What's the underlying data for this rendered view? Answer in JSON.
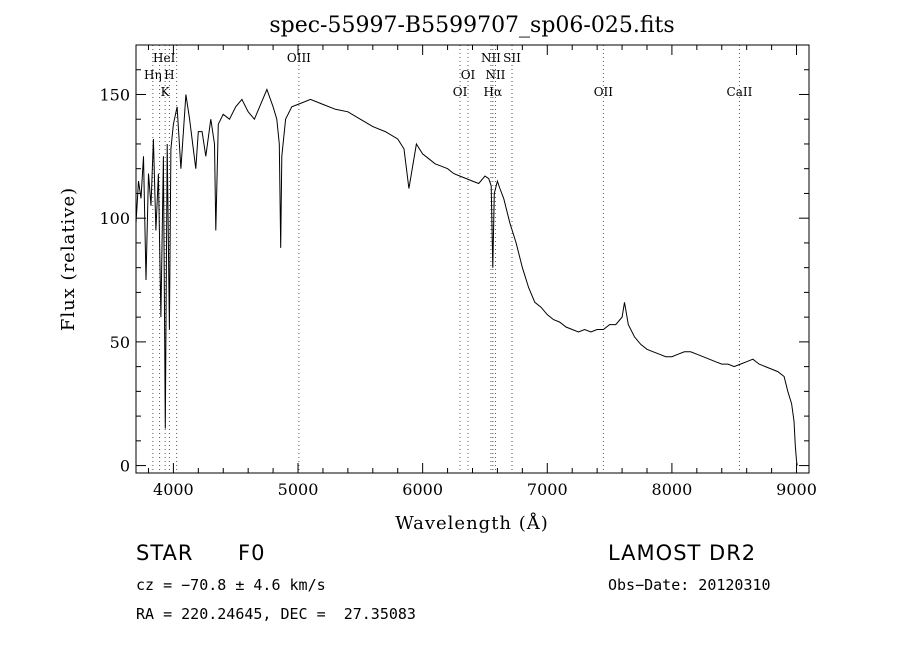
{
  "chart_data": {
    "type": "line",
    "title": "spec-55997-B5599707_sp06-025.fits",
    "xlabel": "Wavelength (Å)",
    "ylabel": "Flux (relative)",
    "xlim": [
      3700,
      9100
    ],
    "ylim": [
      -3,
      170
    ],
    "xticks": [
      4000,
      5000,
      6000,
      7000,
      8000,
      9000
    ],
    "yticks": [
      0,
      50,
      100,
      150
    ],
    "grid": false,
    "series": [
      {
        "x": [
          3700,
          3720,
          3740,
          3760,
          3780,
          3800,
          3820,
          3840,
          3860,
          3880,
          3900,
          3920,
          3935,
          3950,
          3968,
          3980,
          4000,
          4030,
          4060,
          4100,
          4130,
          4160,
          4180,
          4200,
          4230,
          4260,
          4300,
          4330,
          4340,
          4360,
          4400,
          4450,
          4500,
          4550,
          4600,
          4650,
          4700,
          4750,
          4800,
          4830,
          4850,
          4861,
          4870,
          4900,
          4950,
          5000,
          5100,
          5200,
          5300,
          5400,
          5500,
          5600,
          5700,
          5800,
          5850,
          5890,
          5950,
          6000,
          6050,
          6100,
          6150,
          6200,
          6250,
          6300,
          6350,
          6400,
          6450,
          6500,
          6530,
          6550,
          6563,
          6575,
          6600,
          6620,
          6650,
          6700,
          6750,
          6800,
          6850,
          6900,
          6950,
          7000,
          7050,
          7100,
          7150,
          7200,
          7250,
          7300,
          7350,
          7400,
          7450,
          7500,
          7550,
          7600,
          7620,
          7650,
          7700,
          7750,
          7800,
          7850,
          7900,
          7950,
          8000,
          8050,
          8100,
          8150,
          8200,
          8250,
          8300,
          8350,
          8400,
          8450,
          8500,
          8550,
          8600,
          8650,
          8700,
          8750,
          8800,
          8850,
          8900,
          8930,
          8960,
          8980,
          8990,
          9000,
          9005
        ],
        "y": [
          98,
          115,
          108,
          125,
          75,
          118,
          105,
          132,
          95,
          118,
          60,
          125,
          15,
          130,
          55,
          128,
          138,
          145,
          120,
          150,
          140,
          128,
          120,
          135,
          135,
          125,
          140,
          130,
          95,
          138,
          142,
          140,
          145,
          148,
          143,
          140,
          146,
          152,
          145,
          140,
          130,
          88,
          125,
          140,
          145,
          146,
          148,
          146,
          144,
          143,
          140,
          137,
          135,
          132,
          128,
          112,
          130,
          126,
          124,
          122,
          121,
          120,
          118,
          117,
          116,
          115,
          114,
          117,
          116,
          113,
          80,
          110,
          115,
          112,
          108,
          98,
          90,
          80,
          72,
          66,
          64,
          61,
          59,
          58,
          56,
          55,
          54,
          55,
          54,
          55,
          55,
          57,
          57,
          60,
          66,
          57,
          52,
          49,
          47,
          46,
          45,
          44,
          44,
          45,
          46,
          46,
          45,
          44,
          43,
          42,
          41,
          41,
          40,
          41,
          42,
          43,
          41,
          40,
          39,
          38,
          36,
          30,
          25,
          18,
          8,
          2,
          0
        ]
      }
    ],
    "lines": [
      {
        "x": 3835,
        "labels": [
          "Hη"
        ]
      },
      {
        "x": 3889,
        "labels": []
      },
      {
        "x": 3934,
        "labels": [
          "K"
        ]
      },
      {
        "x": 3968,
        "labels": [
          "H"
        ]
      },
      {
        "x": 4026,
        "labels": [
          "HeI"
        ]
      },
      {
        "x": 5007,
        "labels": [
          "OIII"
        ]
      },
      {
        "x": 6300,
        "labels": [
          "OI"
        ]
      },
      {
        "x": 6364,
        "labels": [
          "OI"
        ]
      },
      {
        "x": 6548,
        "labels": [
          "NII"
        ]
      },
      {
        "x": 6563,
        "labels": [
          "Hα"
        ]
      },
      {
        "x": 6584,
        "labels": [
          "NII"
        ]
      },
      {
        "x": 6717,
        "labels": [
          "SII"
        ]
      },
      {
        "x": 7450,
        "labels": [
          "OII"
        ]
      },
      {
        "x": 8542,
        "labels": [
          "CaII"
        ]
      }
    ]
  },
  "info": {
    "class_label": "STAR",
    "subclass": "F0",
    "survey": "LAMOST DR2",
    "cz": "cz = −70.8 ± 4.6 km/s",
    "obs_date": "Obs−Date: 20120310",
    "coords": "RA = 220.24645, DEC =  27.35083"
  }
}
